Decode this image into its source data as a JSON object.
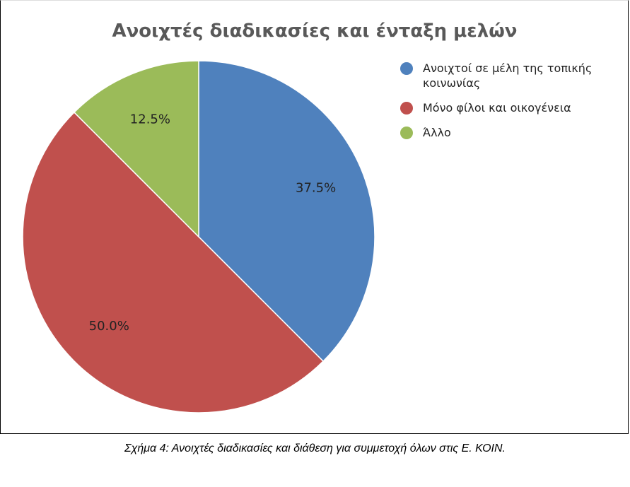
{
  "chart_data": {
    "type": "pie",
    "title": "Ανοιχτές διαδικασίες και ένταξη μελών",
    "categories": [
      "Ανοιχτοί σε μέλη της τοπικής κοινωνίας",
      "Μόνο φίλοι και οικογένεια",
      "Άλλο"
    ],
    "values": [
      37.5,
      50.0,
      12.5
    ],
    "value_labels": [
      "37.5%",
      "50.0%",
      "12.5%"
    ],
    "colors": [
      "#4f81bd",
      "#c0504d",
      "#9bbb59"
    ],
    "legend": "right",
    "caption": "Σχήμα 4: Ανοιχτές διαδικασίες και διάθεση για συμμετοχή όλων στις Ε. ΚΟΙΝ."
  }
}
